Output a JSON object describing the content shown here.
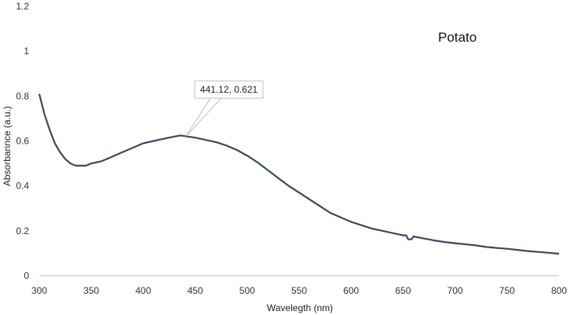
{
  "chart_data": {
    "type": "line",
    "title": "Potato",
    "xlabel": "Wavelegth (nm)",
    "ylabel": "Absorbannce (a.u.)",
    "xlim": [
      300,
      800
    ],
    "ylim": [
      0,
      1.2
    ],
    "x_ticks": [
      "300",
      "350",
      "400",
      "450",
      "500",
      "550",
      "600",
      "650",
      "700",
      "750",
      "800"
    ],
    "y_ticks": [
      "0",
      "0.2",
      "0.4",
      "0.6",
      "0.8",
      "1",
      "1.2"
    ],
    "grid": false,
    "line_color": "#3a4a5c",
    "series": [
      {
        "x": [
          300,
          305,
          310,
          315,
          320,
          325,
          330,
          335,
          340,
          345,
          350,
          355,
          360,
          370,
          380,
          390,
          400,
          410,
          420,
          430,
          436,
          441.12,
          450,
          460,
          470,
          480,
          490,
          500,
          510,
          520,
          530,
          540,
          550,
          560,
          570,
          580,
          590,
          600,
          610,
          620,
          630,
          640,
          650,
          653,
          655,
          658,
          660,
          670,
          680,
          690,
          700,
          710,
          720,
          730,
          740,
          750,
          760,
          770,
          780,
          790,
          800
        ],
        "y": [
          0.81,
          0.72,
          0.65,
          0.59,
          0.55,
          0.52,
          0.5,
          0.49,
          0.49,
          0.49,
          0.5,
          0.505,
          0.51,
          0.53,
          0.55,
          0.57,
          0.59,
          0.6,
          0.61,
          0.62,
          0.625,
          0.621,
          0.615,
          0.605,
          0.595,
          0.58,
          0.56,
          0.535,
          0.505,
          0.47,
          0.435,
          0.4,
          0.37,
          0.34,
          0.31,
          0.28,
          0.26,
          0.24,
          0.225,
          0.21,
          0.2,
          0.19,
          0.18,
          0.18,
          0.162,
          0.162,
          0.175,
          0.166,
          0.157,
          0.15,
          0.145,
          0.14,
          0.135,
          0.128,
          0.124,
          0.12,
          0.115,
          0.11,
          0.106,
          0.102,
          0.098
        ]
      }
    ],
    "annotations": [
      {
        "text": "441.12, 0.621",
        "x": 441.12,
        "y": 0.621
      }
    ]
  }
}
